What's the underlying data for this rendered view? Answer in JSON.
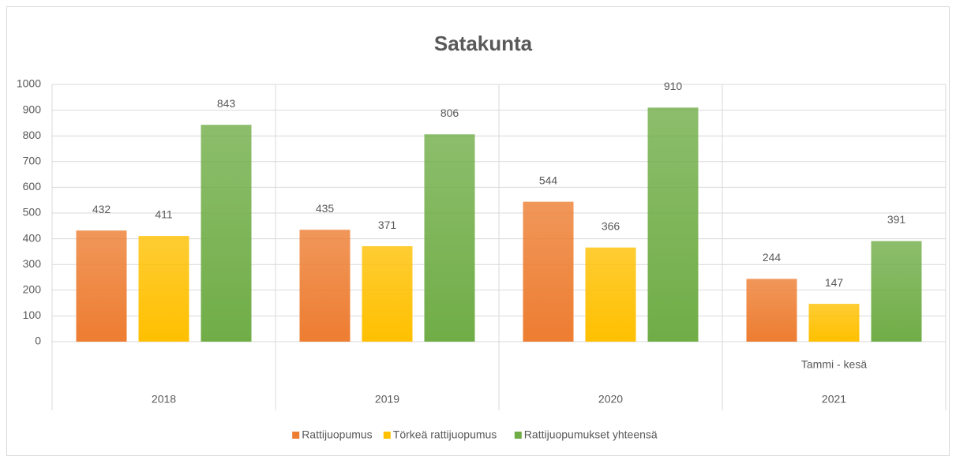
{
  "chart_data": {
    "type": "bar",
    "title": "Satakunta",
    "categories": [
      "2018",
      "2019",
      "2020",
      "2021"
    ],
    "category_sublabels": [
      null,
      null,
      null,
      "Tammi - kesä"
    ],
    "series": [
      {
        "name": "Rattijuopumus",
        "color": "#ed7d31",
        "values": [
          432,
          435,
          544,
          244
        ]
      },
      {
        "name": "Törkeä rattijuopumus",
        "color": "#ffc000",
        "values": [
          411,
          371,
          366,
          147
        ]
      },
      {
        "name": "Rattijuopumukset yhteensä",
        "color": "#70ad47",
        "values": [
          843,
          806,
          910,
          391
        ]
      }
    ],
    "ylim": [
      0,
      1000
    ],
    "yticks": [
      0,
      100,
      200,
      300,
      400,
      500,
      600,
      700,
      800,
      900,
      1000
    ],
    "grid": true,
    "legend": "bottom"
  }
}
